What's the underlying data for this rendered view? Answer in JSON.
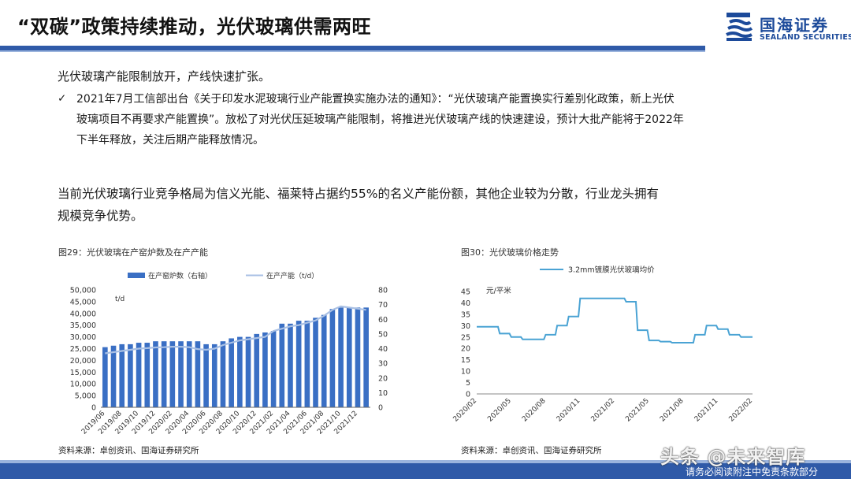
{
  "header": {
    "title": "“双碳”政策持续推动，光伏玻璃供需两旺",
    "logo_name": "国海证券",
    "logo_en": "SEALAND SECURITIES"
  },
  "body": {
    "para1": "光伏玻璃产能限制放开，产线快速扩张。",
    "bullet_mark": "✓",
    "bullet_line1": "2021年7月工信部出台《关于印发水泥玻璃行业产能置换实施办法的通知》：“光伏玻璃产能置换实行差别化政策，新上光伏",
    "bullet_line2": "玻璃项目不再要求产能置换”。放松了对光伏压延玻璃产能限制，将推进光伏玻璃产线的快速建设，预计大批产能将于2022年",
    "bullet_line3": "下半年释放，关注后期产能释放情况。",
    "para2_line1": "当前光伏玻璃行业竞争格局为信义光能、福莱特占据约55%的名义产能份额，其他企业较为分散，行业龙头拥有",
    "para2_line2": "规模竞争优势。"
  },
  "figure29": {
    "caption": "图29：光伏玻璃在产窑炉数及在产产能",
    "source": "资料来源：卓创资讯、国海证券研究所"
  },
  "figure30": {
    "caption": "图30：光伏玻璃价格走势",
    "source": "资料来源：卓创资讯、国海证券研究所"
  },
  "footer": {
    "watermark": "头条 @未来智库",
    "note": "请务必阅读附注中免责条款部分"
  },
  "colors": {
    "brand": "#2f5aa8",
    "bar": "#3a6fc4",
    "line": "#a9c0e4",
    "price_line": "#4aa3d4"
  },
  "chart_data": [
    {
      "type": "bar",
      "categories": [
        "2019/06",
        "2019/07",
        "2019/08",
        "2019/09",
        "2019/10",
        "2019/11",
        "2019/12",
        "2020/01",
        "2020/02",
        "2020/03",
        "2020/04",
        "2020/05",
        "2020/06",
        "2020/07",
        "2020/08",
        "2020/09",
        "2020/10",
        "2020/11",
        "2020/12",
        "2021/01",
        "2021/02",
        "2021/03",
        "2021/04",
        "2021/05",
        "2021/06",
        "2021/07",
        "2021/08",
        "2021/09",
        "2021/10",
        "2021/11",
        "2021/12",
        "2022/01"
      ],
      "tick_labels": [
        "2019/06",
        "2019/08",
        "2019/10",
        "2019/12",
        "2020/02",
        "2020/04",
        "2020/06",
        "2020/08",
        "2020/10",
        "2020/12",
        "2021/02",
        "2021/04",
        "2021/06",
        "2021/08",
        "2021/10",
        "2021/12"
      ],
      "series": [
        {
          "name": "在产窑炉数（右轴）",
          "axis": "right",
          "kind": "bar",
          "values": [
            41,
            42,
            43,
            43,
            44,
            44,
            45,
            45,
            45,
            45,
            45,
            45,
            43,
            43,
            45,
            47,
            48,
            48,
            50,
            51,
            52,
            57,
            57,
            59,
            59,
            61,
            63,
            67,
            68,
            68,
            68,
            68
          ]
        },
        {
          "name": "在产产能（t/d）",
          "axis": "left",
          "kind": "line",
          "values": [
            23000,
            23500,
            24000,
            24500,
            25000,
            25200,
            25500,
            25600,
            25800,
            25800,
            25600,
            24800,
            24500,
            25000,
            26500,
            27500,
            28500,
            29000,
            29500,
            30000,
            32500,
            33500,
            34500,
            35000,
            36000,
            37000,
            39000,
            41500,
            43000,
            42500,
            42000,
            41500
          ]
        }
      ],
      "y_left": {
        "label": "t/d",
        "ylim": [
          0,
          50000
        ],
        "ticks": [
          "0",
          "5,000",
          "10,000",
          "15,000",
          "20,000",
          "25,000",
          "30,000",
          "35,000",
          "40,000",
          "45,000",
          "50,000"
        ]
      },
      "y_right": {
        "ylim": [
          0,
          80
        ],
        "ticks": [
          "0",
          "10",
          "20",
          "30",
          "40",
          "50",
          "60",
          "70",
          "80"
        ]
      },
      "legend": "top"
    },
    {
      "type": "line",
      "x": [
        "2020/02",
        "2020/03",
        "2020/04",
        "2020/05",
        "2020/06",
        "2020/07",
        "2020/08",
        "2020/09",
        "2020/10",
        "2020/11",
        "2020/12",
        "2021/01",
        "2021/02",
        "2021/03",
        "2021/04",
        "2021/05",
        "2021/06",
        "2021/07",
        "2021/08",
        "2021/09",
        "2021/10",
        "2021/11",
        "2021/12",
        "2022/01",
        "2022/02"
      ],
      "tick_labels": [
        "2020/02",
        "2020/05",
        "2020/08",
        "2020/11",
        "2021/02",
        "2021/05",
        "2021/08",
        "2021/11",
        "2022/02"
      ],
      "series": [
        {
          "name": "3.2mm镀膜光伏玻璃均价",
          "points": [
            [
              "2020/02",
              29.5
            ],
            [
              "2020/03",
              29.5
            ],
            [
              "2020/04",
              26.5
            ],
            [
              "2020/05",
              25.0
            ],
            [
              "2020/06",
              24.0
            ],
            [
              "2020/07",
              24.0
            ],
            [
              "2020/08",
              26.0
            ],
            [
              "2020/09",
              30.0
            ],
            [
              "2020/10",
              34.0
            ],
            [
              "2020/11",
              42.0
            ],
            [
              "2020/12",
              42.0
            ],
            [
              "2021/01",
              42.0
            ],
            [
              "2021/02",
              42.0
            ],
            [
              "2021/03",
              40.5
            ],
            [
              "2021/04",
              28.0
            ],
            [
              "2021/05",
              23.5
            ],
            [
              "2021/06",
              23.0
            ],
            [
              "2021/07",
              22.5
            ],
            [
              "2021/08",
              22.5
            ],
            [
              "2021/09",
              26.0
            ],
            [
              "2021/10",
              30.0
            ],
            [
              "2021/11",
              28.5
            ],
            [
              "2021/12",
              26.0
            ],
            [
              "2022/01",
              25.0
            ],
            [
              "2022/02",
              25.0
            ]
          ]
        }
      ],
      "ylabel": "元/平米",
      "ylim": [
        0,
        45
      ],
      "yticks": [
        "0",
        "5",
        "10",
        "15",
        "20",
        "25",
        "30",
        "35",
        "40",
        "45"
      ],
      "legend": "top"
    }
  ]
}
